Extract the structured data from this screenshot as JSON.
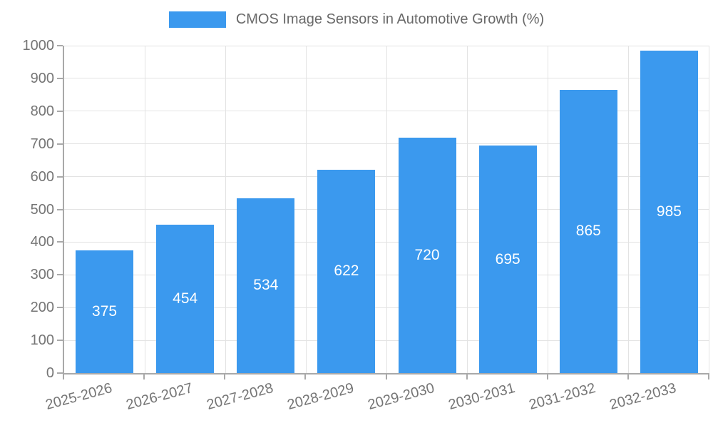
{
  "legend": {
    "label": "CMOS Image Sensors in Automotive Growth (%)"
  },
  "chart_data": {
    "type": "bar",
    "title": "CMOS Image Sensors in Automotive Growth (%)",
    "categories": [
      "2025-2026",
      "2026-2027",
      "2027-2028",
      "2028-2029",
      "2029-2030",
      "2030-2031",
      "2031-2032",
      "2032-2033"
    ],
    "values": [
      375,
      454,
      534,
      622,
      720,
      695,
      865,
      985
    ],
    "value_labels": [
      "375",
      "454",
      "534",
      "622",
      "720",
      "695",
      "865",
      "985"
    ],
    "xlabel": "",
    "ylabel": "",
    "ylim": [
      0,
      1000
    ],
    "ytick_step": 100,
    "ytick_labels": [
      "0",
      "100",
      "200",
      "300",
      "400",
      "500",
      "600",
      "700",
      "800",
      "900",
      "1000"
    ],
    "grid": true,
    "legend_position": "top-center",
    "x_label_rotation_deg": -15,
    "colors": {
      "bar": "#3B99EE",
      "value_label": "#FFFFFF",
      "axis_line": "#A9A9A9",
      "grid_line": "#E3E3E3",
      "axis_text": "#757575",
      "legend_text": "#696969"
    }
  }
}
